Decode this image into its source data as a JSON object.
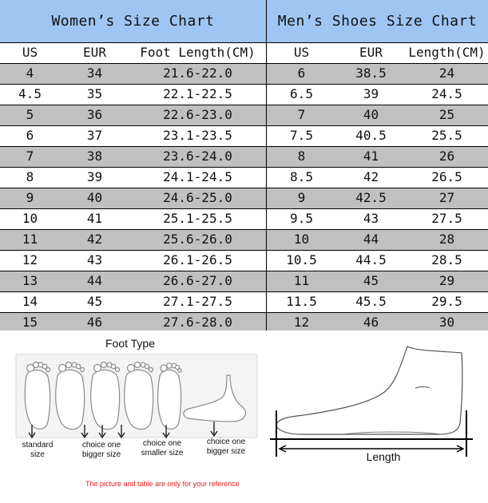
{
  "women": {
    "title": "Women’s Size Chart",
    "columns": [
      "US",
      "EUR",
      "Foot Length(CM)"
    ],
    "rows": [
      [
        "4",
        "34",
        "21.6-22.0"
      ],
      [
        "4.5",
        "35",
        "22.1-22.5"
      ],
      [
        "5",
        "36",
        "22.6-23.0"
      ],
      [
        "6",
        "37",
        "23.1-23.5"
      ],
      [
        "7",
        "38",
        "23.6-24.0"
      ],
      [
        "8",
        "39",
        "24.1-24.5"
      ],
      [
        "9",
        "40",
        "24.6-25.0"
      ],
      [
        "10",
        "41",
        "25.1-25.5"
      ],
      [
        "11",
        "42",
        "25.6-26.0"
      ],
      [
        "12",
        "43",
        "26.1-26.5"
      ],
      [
        "13",
        "44",
        "26.6-27.0"
      ],
      [
        "14",
        "45",
        "27.1-27.5"
      ],
      [
        "15",
        "46",
        "27.6-28.0"
      ]
    ]
  },
  "men": {
    "title": "Men’s Shoes Size Chart",
    "columns": [
      "US",
      "EUR",
      "Length(CM)"
    ],
    "rows": [
      [
        "6",
        "38.5",
        "24"
      ],
      [
        "6.5",
        "39",
        "24.5"
      ],
      [
        "7",
        "40",
        "25"
      ],
      [
        "7.5",
        "40.5",
        "25.5"
      ],
      [
        "8",
        "41",
        "26"
      ],
      [
        "8.5",
        "42",
        "26.5"
      ],
      [
        "9",
        "42.5",
        "27"
      ],
      [
        "9.5",
        "43",
        "27.5"
      ],
      [
        "10",
        "44",
        "28"
      ],
      [
        "10.5",
        "44.5",
        "28.5"
      ],
      [
        "11",
        "45",
        "29"
      ],
      [
        "11.5",
        "45.5",
        "29.5"
      ],
      [
        "12",
        "46",
        "30"
      ]
    ]
  },
  "foot_type": {
    "title": "Foot Type",
    "labels": [
      {
        "line1": "standard",
        "line2": "size"
      },
      {
        "line1": "choice one",
        "line2": "bigger size"
      },
      {
        "line1": "choice one",
        "line2": "smaller size"
      },
      {
        "line1": "choice one",
        "line2": "bigger size"
      }
    ]
  },
  "shoe_diagram": {
    "length_label": "Length"
  },
  "disclaimer": "The picture and table are only for your reference",
  "colors": {
    "header_bg": "#9fc5f2",
    "row_gray": "#c0c0c0",
    "disclaimer": "#e02020"
  }
}
